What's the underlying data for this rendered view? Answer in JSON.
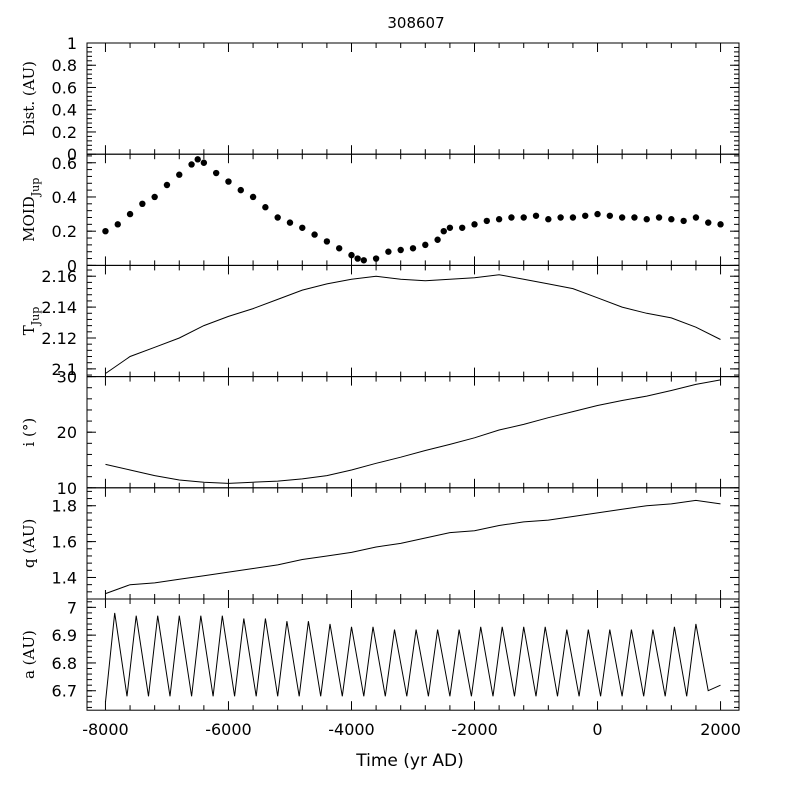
{
  "chart_data": {
    "type": "line",
    "title": "308607",
    "xlabel": "Time (yr AD)",
    "xlim": [
      -8300,
      2300
    ],
    "xticks": [
      -8000,
      -6000,
      -4000,
      -2000,
      0,
      2000
    ],
    "grid": false,
    "panels": [
      {
        "id": "dist",
        "ylabel": "Dist. (AU)",
        "ylim": [
          0,
          1
        ],
        "yticks": [
          0,
          0.2,
          0.4,
          0.6,
          0.8,
          1
        ],
        "ytick_labels": [
          "0",
          "0.2",
          "0.4",
          "0.6",
          "0.8",
          "1"
        ],
        "style": "empty",
        "points": []
      },
      {
        "id": "moid",
        "ylabel_main": "MOID",
        "ylabel_sub": "Jup",
        "ylim": [
          0,
          0.65
        ],
        "yticks": [
          0,
          0.2,
          0.4,
          0.6
        ],
        "ytick_labels": [
          "0",
          "0.2",
          "0.4",
          "0.6"
        ],
        "style": "dots",
        "points": [
          [
            -8000,
            0.2
          ],
          [
            -7800,
            0.24
          ],
          [
            -7600,
            0.3
          ],
          [
            -7400,
            0.36
          ],
          [
            -7200,
            0.4
          ],
          [
            -7000,
            0.47
          ],
          [
            -6800,
            0.53
          ],
          [
            -6600,
            0.59
          ],
          [
            -6500,
            0.62
          ],
          [
            -6400,
            0.6
          ],
          [
            -6200,
            0.54
          ],
          [
            -6000,
            0.49
          ],
          [
            -5800,
            0.44
          ],
          [
            -5600,
            0.4
          ],
          [
            -5400,
            0.34
          ],
          [
            -5200,
            0.28
          ],
          [
            -5000,
            0.25
          ],
          [
            -4800,
            0.22
          ],
          [
            -4600,
            0.18
          ],
          [
            -4400,
            0.14
          ],
          [
            -4200,
            0.1
          ],
          [
            -4000,
            0.06
          ],
          [
            -3900,
            0.04
          ],
          [
            -3800,
            0.03
          ],
          [
            -3600,
            0.04
          ],
          [
            -3400,
            0.08
          ],
          [
            -3200,
            0.09
          ],
          [
            -3000,
            0.1
          ],
          [
            -2800,
            0.12
          ],
          [
            -2600,
            0.15
          ],
          [
            -2500,
            0.2
          ],
          [
            -2400,
            0.22
          ],
          [
            -2200,
            0.22
          ],
          [
            -2000,
            0.24
          ],
          [
            -1800,
            0.26
          ],
          [
            -1600,
            0.27
          ],
          [
            -1400,
            0.28
          ],
          [
            -1200,
            0.28
          ],
          [
            -1000,
            0.29
          ],
          [
            -800,
            0.27
          ],
          [
            -600,
            0.28
          ],
          [
            -400,
            0.28
          ],
          [
            -200,
            0.29
          ],
          [
            0,
            0.3
          ],
          [
            200,
            0.29
          ],
          [
            400,
            0.28
          ],
          [
            600,
            0.28
          ],
          [
            800,
            0.27
          ],
          [
            1000,
            0.28
          ],
          [
            1200,
            0.27
          ],
          [
            1400,
            0.26
          ],
          [
            1600,
            0.28
          ],
          [
            1800,
            0.25
          ],
          [
            2000,
            0.24
          ]
        ]
      },
      {
        "id": "tjup",
        "ylabel_main": "T",
        "ylabel_sub": "Jup",
        "ylim": [
          2.095,
          2.167
        ],
        "yticks": [
          2.1,
          2.12,
          2.14,
          2.16
        ],
        "ytick_labels": [
          "2.1",
          "2.12",
          "2.14",
          "2.16"
        ],
        "style": "line",
        "points": [
          [
            -8000,
            2.097
          ],
          [
            -7600,
            2.108
          ],
          [
            -7200,
            2.114
          ],
          [
            -6800,
            2.12
          ],
          [
            -6400,
            2.128
          ],
          [
            -6000,
            2.134
          ],
          [
            -5600,
            2.139
          ],
          [
            -5200,
            2.145
          ],
          [
            -4800,
            2.151
          ],
          [
            -4400,
            2.155
          ],
          [
            -4000,
            2.158
          ],
          [
            -3600,
            2.16
          ],
          [
            -3200,
            2.158
          ],
          [
            -2800,
            2.157
          ],
          [
            -2400,
            2.158
          ],
          [
            -2000,
            2.159
          ],
          [
            -1600,
            2.161
          ],
          [
            -1200,
            2.158
          ],
          [
            -800,
            2.155
          ],
          [
            -400,
            2.152
          ],
          [
            0,
            2.146
          ],
          [
            400,
            2.14
          ],
          [
            800,
            2.136
          ],
          [
            1200,
            2.133
          ],
          [
            1600,
            2.127
          ],
          [
            2000,
            2.119
          ]
        ]
      },
      {
        "id": "incl",
        "ylabel": "i (°)",
        "ylim": [
          10,
          30
        ],
        "yticks": [
          10,
          20,
          30
        ],
        "ytick_labels": [
          "10",
          "20",
          "30"
        ],
        "style": "line",
        "points": [
          [
            -8000,
            14.2
          ],
          [
            -7600,
            13.2
          ],
          [
            -7200,
            12.2
          ],
          [
            -6800,
            11.4
          ],
          [
            -6400,
            11
          ],
          [
            -6000,
            10.8
          ],
          [
            -5600,
            11
          ],
          [
            -5200,
            11.2
          ],
          [
            -4800,
            11.6
          ],
          [
            -4400,
            12.2
          ],
          [
            -4000,
            13.2
          ],
          [
            -3600,
            14.4
          ],
          [
            -3200,
            15.5
          ],
          [
            -2800,
            16.7
          ],
          [
            -2400,
            17.8
          ],
          [
            -2000,
            19
          ],
          [
            -1600,
            20.4
          ],
          [
            -1200,
            21.4
          ],
          [
            -800,
            22.6
          ],
          [
            -400,
            23.7
          ],
          [
            0,
            24.8
          ],
          [
            400,
            25.7
          ],
          [
            800,
            26.5
          ],
          [
            1200,
            27.5
          ],
          [
            1600,
            28.6
          ],
          [
            2000,
            29.4
          ]
        ]
      },
      {
        "id": "q",
        "ylabel": "q (AU)",
        "ylim": [
          1.28,
          1.9
        ],
        "yticks": [
          1.4,
          1.6,
          1.8
        ],
        "ytick_labels": [
          "1.4",
          "1.6",
          "1.8"
        ],
        "style": "line",
        "points": [
          [
            -8000,
            1.31
          ],
          [
            -7600,
            1.36
          ],
          [
            -7200,
            1.37
          ],
          [
            -6800,
            1.39
          ],
          [
            -6400,
            1.41
          ],
          [
            -6000,
            1.43
          ],
          [
            -5600,
            1.45
          ],
          [
            -5200,
            1.47
          ],
          [
            -4800,
            1.5
          ],
          [
            -4400,
            1.52
          ],
          [
            -4000,
            1.54
          ],
          [
            -3600,
            1.57
          ],
          [
            -3200,
            1.59
          ],
          [
            -2800,
            1.62
          ],
          [
            -2400,
            1.65
          ],
          [
            -2000,
            1.66
          ],
          [
            -1600,
            1.69
          ],
          [
            -1200,
            1.71
          ],
          [
            -800,
            1.72
          ],
          [
            -400,
            1.74
          ],
          [
            0,
            1.76
          ],
          [
            400,
            1.78
          ],
          [
            800,
            1.8
          ],
          [
            1200,
            1.81
          ],
          [
            1600,
            1.83
          ],
          [
            2000,
            1.81
          ]
        ]
      },
      {
        "id": "a",
        "ylabel": "a (AU)",
        "ylim": [
          6.63,
          7.03
        ],
        "yticks": [
          6.7,
          6.8,
          6.9,
          7
        ],
        "ytick_labels": [
          "6.7",
          "6.8",
          "6.9",
          "7"
        ],
        "style": "line",
        "points": [
          [
            -8000,
            6.66
          ],
          [
            -7850,
            6.98
          ],
          [
            -7650,
            6.68
          ],
          [
            -7500,
            6.97
          ],
          [
            -7300,
            6.68
          ],
          [
            -7150,
            6.97
          ],
          [
            -6950,
            6.68
          ],
          [
            -6800,
            6.97
          ],
          [
            -6600,
            6.68
          ],
          [
            -6450,
            6.97
          ],
          [
            -6250,
            6.68
          ],
          [
            -6100,
            6.97
          ],
          [
            -5900,
            6.68
          ],
          [
            -5750,
            6.96
          ],
          [
            -5550,
            6.68
          ],
          [
            -5400,
            6.96
          ],
          [
            -5200,
            6.68
          ],
          [
            -5050,
            6.95
          ],
          [
            -4850,
            6.68
          ],
          [
            -4700,
            6.95
          ],
          [
            -4500,
            6.68
          ],
          [
            -4350,
            6.94
          ],
          [
            -4150,
            6.68
          ],
          [
            -4000,
            6.93
          ],
          [
            -3800,
            6.68
          ],
          [
            -3650,
            6.93
          ],
          [
            -3450,
            6.68
          ],
          [
            -3300,
            6.92
          ],
          [
            -3100,
            6.68
          ],
          [
            -2950,
            6.92
          ],
          [
            -2750,
            6.68
          ],
          [
            -2600,
            6.92
          ],
          [
            -2400,
            6.68
          ],
          [
            -2250,
            6.92
          ],
          [
            -2050,
            6.68
          ],
          [
            -1900,
            6.93
          ],
          [
            -1700,
            6.68
          ],
          [
            -1550,
            6.93
          ],
          [
            -1350,
            6.68
          ],
          [
            -1200,
            6.93
          ],
          [
            -1000,
            6.68
          ],
          [
            -850,
            6.93
          ],
          [
            -650,
            6.68
          ],
          [
            -500,
            6.92
          ],
          [
            -300,
            6.68
          ],
          [
            -150,
            6.92
          ],
          [
            50,
            6.68
          ],
          [
            200,
            6.92
          ],
          [
            400,
            6.68
          ],
          [
            550,
            6.92
          ],
          [
            750,
            6.68
          ],
          [
            900,
            6.92
          ],
          [
            1100,
            6.68
          ],
          [
            1250,
            6.93
          ],
          [
            1450,
            6.68
          ],
          [
            1600,
            6.94
          ],
          [
            1800,
            6.7
          ],
          [
            2000,
            6.72
          ]
        ]
      }
    ]
  }
}
